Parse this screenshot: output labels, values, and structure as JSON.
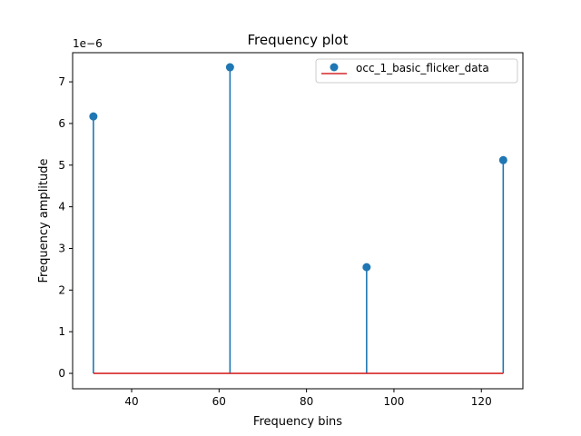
{
  "chart_data": {
    "type": "stem",
    "title": "Frequency plot",
    "xlabel": "Frequency bins",
    "ylabel": "Frequency amplitude",
    "y_offset_label": "1e−6",
    "y_scale": 1e-06,
    "xlim": [
      26.5,
      129.5
    ],
    "ylim": [
      -0.37,
      7.7
    ],
    "x_ticks": [
      40,
      60,
      80,
      100,
      120
    ],
    "y_ticks": [
      0,
      1,
      2,
      3,
      4,
      5,
      6,
      7
    ],
    "series": [
      {
        "name": "occ_1_basic_flicker_data",
        "x": [
          31.25,
          62.5,
          93.75,
          125.0
        ],
        "y": [
          6.17,
          7.35,
          2.55,
          5.12
        ]
      }
    ],
    "baseline": 0,
    "legend_position": "upper right",
    "colors": {
      "stem": "#1f77b4",
      "baseline": "#d62728"
    }
  }
}
